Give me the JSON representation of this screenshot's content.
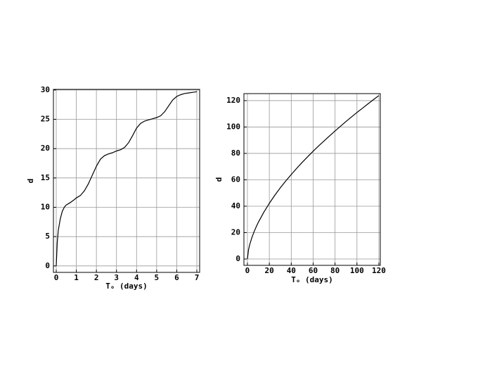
{
  "chart_data": [
    {
      "type": "line",
      "y_label": "d",
      "x_label": "Tₒ (days)",
      "xlim": [
        -0.14,
        7.14
      ],
      "ylim": [
        -1.1,
        30.1
      ],
      "xticks": [
        0,
        1,
        2,
        3,
        4,
        5,
        6,
        7
      ],
      "yticks": [
        0,
        5,
        10,
        15,
        20,
        25,
        30
      ],
      "grid": true,
      "series": [
        {
          "color": "#000000",
          "x": [
            0,
            0.05,
            0.1,
            0.2,
            0.3,
            0.4,
            0.5,
            0.7,
            0.9,
            1.0,
            1.2,
            1.4,
            1.6,
            1.8,
            2.0,
            2.2,
            2.4,
            2.6,
            2.8,
            3.0,
            3.2,
            3.4,
            3.6,
            3.8,
            4.0,
            4.2,
            4.4,
            4.6,
            4.8,
            5.0,
            5.2,
            5.4,
            5.6,
            5.8,
            6.0,
            6.2,
            6.4,
            6.6,
            6.8,
            7.0
          ],
          "values": [
            0,
            4,
            6,
            8,
            9.3,
            10,
            10.4,
            10.8,
            11.3,
            11.6,
            12,
            12.8,
            14,
            15.5,
            17,
            18.2,
            18.8,
            19.1,
            19.3,
            19.6,
            19.8,
            20.2,
            21,
            22.2,
            23.5,
            24.3,
            24.7,
            24.9,
            25.1,
            25.3,
            25.6,
            26.3,
            27.3,
            28.3,
            28.9,
            29.2,
            29.4,
            29.5,
            29.6,
            29.7
          ]
        }
      ]
    },
    {
      "type": "line",
      "y_label": "d",
      "x_label": "Tₒ (days)",
      "xlim": [
        -3.2,
        121.3
      ],
      "ylim": [
        -4.8,
        125.3
      ],
      "xticks": [
        0,
        20,
        40,
        60,
        80,
        100,
        120
      ],
      "yticks": [
        0,
        20,
        40,
        60,
        80,
        100,
        120
      ],
      "grid": true,
      "series": [
        {
          "color": "#000000",
          "x": [
            0,
            1,
            2,
            4,
            6,
            8,
            10,
            15,
            20,
            25,
            30,
            35,
            40,
            45,
            50,
            55,
            60,
            65,
            70,
            75,
            80,
            85,
            90,
            95,
            100,
            105,
            110,
            115,
            120
          ],
          "values": [
            0,
            7,
            10.6,
            16.1,
            20.5,
            24.4,
            27.9,
            35.5,
            42.2,
            48.3,
            53.9,
            59.1,
            64.0,
            68.7,
            73.2,
            77.5,
            81.7,
            85.7,
            89.5,
            93.3,
            97.0,
            100.6,
            104.2,
            107.6,
            111.0,
            114.2,
            117.5,
            120.7,
            123.8
          ]
        }
      ]
    }
  ]
}
